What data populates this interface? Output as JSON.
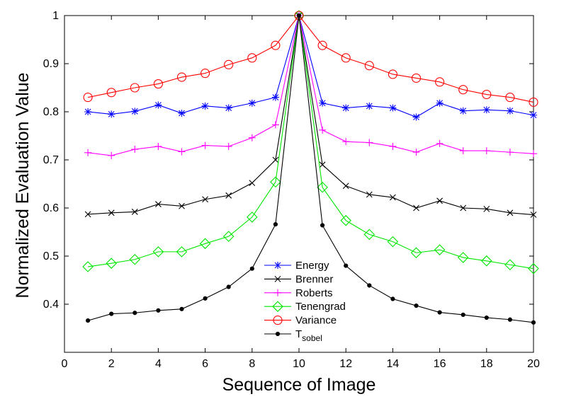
{
  "chart_data": {
    "type": "line",
    "title": "",
    "xlabel": "Sequence of Image",
    "ylabel": "Normalized Evaluation Value",
    "xlim": [
      0,
      20
    ],
    "ylim": [
      0.3,
      1.0
    ],
    "xticks": [
      0,
      2,
      4,
      6,
      8,
      10,
      12,
      14,
      16,
      18,
      20
    ],
    "yticks": [
      0.4,
      0.5,
      0.6,
      0.7,
      0.8,
      0.9,
      1
    ],
    "grid": false,
    "legend_position": "lower-center",
    "x": [
      1,
      2,
      3,
      4,
      5,
      6,
      7,
      8,
      9,
      10,
      11,
      12,
      13,
      14,
      15,
      16,
      17,
      18,
      19,
      20
    ],
    "series": [
      {
        "name": "Energy",
        "color": "#0000ff",
        "marker": "asterisk",
        "values": [
          0.8,
          0.795,
          0.801,
          0.814,
          0.797,
          0.812,
          0.808,
          0.818,
          0.83,
          1.0,
          0.818,
          0.808,
          0.812,
          0.808,
          0.789,
          0.818,
          0.802,
          0.804,
          0.802,
          0.793
        ]
      },
      {
        "name": "Brenner",
        "color": "#000000",
        "marker": "x",
        "values": [
          0.587,
          0.59,
          0.592,
          0.608,
          0.604,
          0.618,
          0.626,
          0.652,
          0.7,
          1.0,
          0.69,
          0.646,
          0.628,
          0.622,
          0.6,
          0.615,
          0.6,
          0.598,
          0.59,
          0.586
        ]
      },
      {
        "name": "Roberts",
        "color": "#ff00ff",
        "marker": "plus",
        "values": [
          0.715,
          0.709,
          0.722,
          0.728,
          0.717,
          0.73,
          0.728,
          0.746,
          0.773,
          1.0,
          0.762,
          0.738,
          0.736,
          0.728,
          0.716,
          0.734,
          0.719,
          0.719,
          0.716,
          0.713
        ]
      },
      {
        "name": "Tenengrad",
        "color": "#00e600",
        "marker": "diamond",
        "values": [
          0.478,
          0.485,
          0.493,
          0.509,
          0.509,
          0.526,
          0.541,
          0.581,
          0.654,
          1.0,
          0.643,
          0.574,
          0.545,
          0.53,
          0.507,
          0.513,
          0.497,
          0.49,
          0.482,
          0.474
        ]
      },
      {
        "name": "Variance",
        "color": "#ff0000",
        "marker": "circle",
        "values": [
          0.83,
          0.84,
          0.85,
          0.858,
          0.872,
          0.88,
          0.898,
          0.912,
          0.938,
          1.0,
          0.938,
          0.912,
          0.896,
          0.878,
          0.87,
          0.862,
          0.846,
          0.836,
          0.83,
          0.82
        ]
      },
      {
        "name": "T",
        "name_subscript": "sobel",
        "color": "#000000",
        "marker": "dot",
        "values": [
          0.366,
          0.38,
          0.382,
          0.387,
          0.39,
          0.412,
          0.436,
          0.474,
          0.566,
          1.0,
          0.564,
          0.48,
          0.439,
          0.411,
          0.397,
          0.383,
          0.378,
          0.372,
          0.368,
          0.362
        ]
      }
    ]
  }
}
